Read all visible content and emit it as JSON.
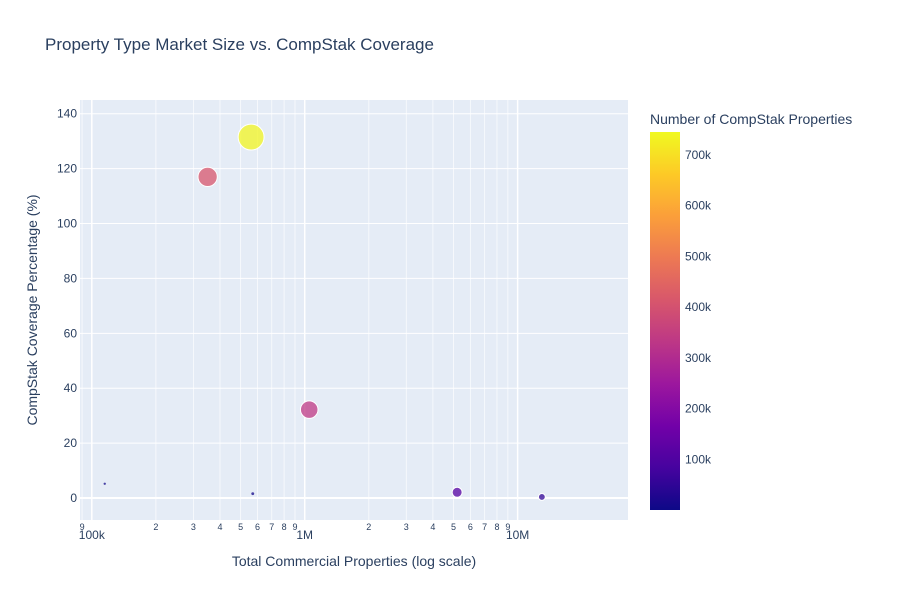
{
  "chart_data": {
    "type": "scatter",
    "title": "Property Type Market Size vs. CompStak Coverage",
    "xlabel": "Total Commercial Properties (log scale)",
    "ylabel": "CompStak Coverage Percentage (%)",
    "xscale": "log",
    "xlim": [
      88000,
      33000000
    ],
    "ylim": [
      -8,
      145
    ],
    "grid": true,
    "x_major_ticks": [
      {
        "value": 100000,
        "label": "100k"
      },
      {
        "value": 1000000,
        "label": "1M"
      },
      {
        "value": 10000000,
        "label": "10M"
      }
    ],
    "x_minor_ticks": [
      {
        "value": 90000,
        "label": "9"
      },
      {
        "value": 200000,
        "label": "2"
      },
      {
        "value": 300000,
        "label": "3"
      },
      {
        "value": 400000,
        "label": "4"
      },
      {
        "value": 500000,
        "label": "5"
      },
      {
        "value": 600000,
        "label": "6"
      },
      {
        "value": 700000,
        "label": "7"
      },
      {
        "value": 800000,
        "label": "8"
      },
      {
        "value": 900000,
        "label": "9"
      },
      {
        "value": 2000000,
        "label": "2"
      },
      {
        "value": 3000000,
        "label": "3"
      },
      {
        "value": 4000000,
        "label": "4"
      },
      {
        "value": 5000000,
        "label": "5"
      },
      {
        "value": 6000000,
        "label": "6"
      },
      {
        "value": 7000000,
        "label": "7"
      },
      {
        "value": 8000000,
        "label": "8"
      },
      {
        "value": 9000000,
        "label": "9"
      }
    ],
    "y_ticks": [
      {
        "value": 0,
        "label": "0"
      },
      {
        "value": 20,
        "label": "20"
      },
      {
        "value": 40,
        "label": "40"
      },
      {
        "value": 60,
        "label": "60"
      },
      {
        "value": 80,
        "label": "80"
      },
      {
        "value": 100,
        "label": "100"
      },
      {
        "value": 120,
        "label": "120"
      },
      {
        "value": 140,
        "label": "140"
      }
    ],
    "colorbar": {
      "title": "Number of CompStak Properties",
      "colorscale": "plasma",
      "range": [
        0,
        745000
      ],
      "ticks": [
        {
          "value": 100000,
          "label": "100k"
        },
        {
          "value": 200000,
          "label": "200k"
        },
        {
          "value": 300000,
          "label": "300k"
        },
        {
          "value": 400000,
          "label": "400k"
        },
        {
          "value": 500000,
          "label": "500k"
        },
        {
          "value": 600000,
          "label": "600k"
        },
        {
          "value": 700000,
          "label": "700k"
        }
      ]
    },
    "points": [
      {
        "x": 115000,
        "y": 5.2,
        "count": 6000
      },
      {
        "x": 350000,
        "y": 117,
        "count": 410000
      },
      {
        "x": 560000,
        "y": 131.5,
        "count": 740000
      },
      {
        "x": 570000,
        "y": 1.6,
        "count": 9000
      },
      {
        "x": 1050000,
        "y": 32.2,
        "count": 338000
      },
      {
        "x": 5200000,
        "y": 2.1,
        "count": 110000
      },
      {
        "x": 13000000,
        "y": 0.4,
        "count": 52000
      }
    ]
  }
}
